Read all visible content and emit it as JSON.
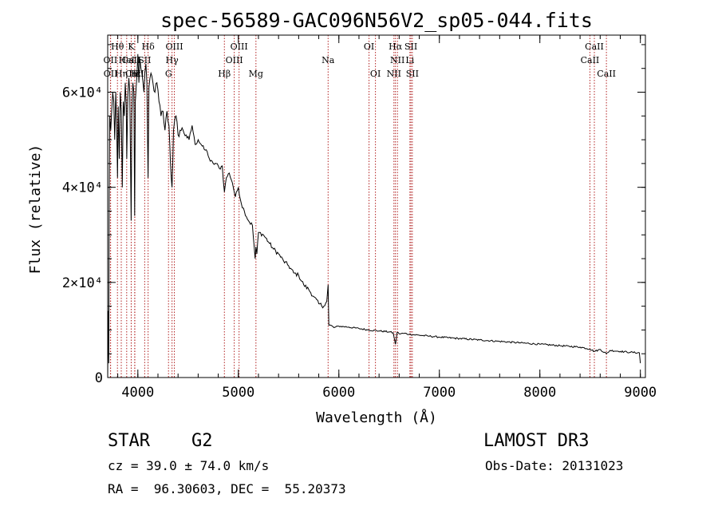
{
  "chart_data": {
    "type": "line",
    "title": "spec-56589-GAC096N56V2_sp05-044.fits",
    "xlabel": "Wavelength (Å)",
    "ylabel": "Flux (relative)",
    "xlim": [
      3700,
      9050
    ],
    "ylim": [
      0,
      72000
    ],
    "x_ticks": [
      {
        "value": 4000,
        "label": "4000"
      },
      {
        "value": 5000,
        "label": "5000"
      },
      {
        "value": 6000,
        "label": "6000"
      },
      {
        "value": 7000,
        "label": "7000"
      },
      {
        "value": 8000,
        "label": "8000"
      },
      {
        "value": 9000,
        "label": "9000"
      }
    ],
    "y_ticks": [
      {
        "value": 0,
        "label": "0"
      },
      {
        "value": 20000,
        "label": "2×10⁴"
      },
      {
        "value": 40000,
        "label": "4×10⁴"
      },
      {
        "value": 60000,
        "label": "6×10⁴"
      }
    ],
    "series": [
      {
        "name": "flux",
        "x": [
          3700,
          3705,
          3710,
          3715,
          3720,
          3730,
          3740,
          3750,
          3760,
          3770,
          3780,
          3790,
          3798,
          3805,
          3815,
          3825,
          3835,
          3845,
          3855,
          3865,
          3875,
          3885,
          3890,
          3900,
          3910,
          3920,
          3933,
          3940,
          3950,
          3960,
          3968,
          3975,
          3990,
          4000,
          4010,
          4020,
          4040,
          4060,
          4080,
          4090,
          4102,
          4110,
          4130,
          4150,
          4170,
          4190,
          4210,
          4230,
          4250,
          4270,
          4290,
          4310,
          4325,
          4340,
          4355,
          4380,
          4400,
          4420,
          4450,
          4480,
          4510,
          4540,
          4570,
          4600,
          4630,
          4660,
          4690,
          4720,
          4750,
          4780,
          4810,
          4840,
          4861,
          4880,
          4910,
          4940,
          4970,
          5000,
          5030,
          5060,
          5100,
          5140,
          5167,
          5175,
          5184,
          5200,
          5250,
          5300,
          5350,
          5400,
          5450,
          5500,
          5550,
          5600,
          5650,
          5700,
          5750,
          5800,
          5850,
          5880,
          5893,
          5900,
          5920,
          5950,
          6000,
          6100,
          6200,
          6300,
          6400,
          6500,
          6540,
          6563,
          6580,
          6600,
          6650,
          6700,
          6800,
          6900,
          7000,
          7200,
          7400,
          7600,
          7800,
          8000,
          8200,
          8400,
          8498,
          8542,
          8600,
          8662,
          8700,
          8800,
          8900,
          8990,
          9000
        ],
        "values": [
          0,
          14000,
          3000,
          38000,
          55000,
          52000,
          56000,
          60000,
          58000,
          50000,
          60000,
          53000,
          42000,
          57000,
          46000,
          60000,
          56000,
          40000,
          58000,
          55000,
          62000,
          57000,
          46000,
          59000,
          63000,
          60000,
          33000,
          55000,
          62000,
          60000,
          34000,
          58000,
          63000,
          68000,
          62000,
          67000,
          64000,
          60000,
          66000,
          62000,
          42000,
          61000,
          64000,
          62000,
          60000,
          62000,
          58000,
          55000,
          56000,
          52000,
          56000,
          53000,
          45000,
          40000,
          52000,
          55000,
          51000,
          52000,
          52000,
          51000,
          50000,
          53000,
          49000,
          50000,
          49000,
          48000,
          47500,
          45500,
          45000,
          45000,
          44000,
          44500,
          39000,
          42000,
          43000,
          41000,
          38000,
          40000,
          36500,
          35000,
          33000,
          32000,
          25000,
          27500,
          26000,
          30500,
          30000,
          28500,
          27000,
          26000,
          24500,
          23500,
          22000,
          21500,
          19500,
          18500,
          17000,
          15500,
          15000,
          16000,
          19500,
          11000,
          11000,
          10500,
          10800,
          10600,
          10300,
          10000,
          9800,
          9600,
          9400,
          7000,
          9500,
          9200,
          9300,
          9100,
          8900,
          8700,
          8500,
          8200,
          7900,
          7600,
          7300,
          7000,
          6700,
          6400,
          6000,
          5500,
          5900,
          5000,
          5700,
          5500,
          5300,
          5200,
          3000
        ]
      }
    ],
    "line_markers": [
      {
        "label": "CaII",
        "x": 3934,
        "row": 2
      },
      {
        "label": "CaII",
        "x": 3969,
        "row": 4
      },
      {
        "label": "Hε",
        "x": 3970,
        "row": 4
      },
      {
        "label": "Hδ",
        "x": 4102,
        "row": 1
      },
      {
        "label": "SII",
        "x": 4068,
        "row": 2
      },
      {
        "label": "Hγ",
        "x": 4340,
        "row": 2
      },
      {
        "label": "OIII",
        "x": 4363,
        "row": 1
      },
      {
        "label": "G",
        "x": 4305,
        "row": 3
      },
      {
        "label": "Hβ",
        "x": 4861,
        "row": 3
      },
      {
        "label": "OIII",
        "x": 4959,
        "row": 2
      },
      {
        "label": "OIII",
        "x": 5007,
        "row": 1
      },
      {
        "label": "Mg",
        "x": 5175,
        "row": 3
      },
      {
        "label": "Na",
        "x": 5893,
        "row": 2
      },
      {
        "label": "OI",
        "x": 6300,
        "row": 1
      },
      {
        "label": "OI",
        "x": 6364,
        "row": 3
      },
      {
        "label": "NII",
        "x": 6548,
        "row": 3
      },
      {
        "label": "Hα",
        "x": 6563,
        "row": 1
      },
      {
        "label": "NII",
        "x": 6583,
        "row": 2
      },
      {
        "label": "Li",
        "x": 6707,
        "row": 2
      },
      {
        "label": "SII",
        "x": 6717,
        "row": 1
      },
      {
        "label": "SII",
        "x": 6731,
        "row": 3
      },
      {
        "label": "CaII",
        "x": 8498,
        "row": 2
      },
      {
        "label": "CaII",
        "x": 8542,
        "row": 1
      },
      {
        "label": "CaII",
        "x": 8662,
        "row": 3
      },
      {
        "label": "Hθ",
        "x": 3797,
        "row": 1
      },
      {
        "label": "OII",
        "x": 3727,
        "row": 2
      },
      {
        "label": "OII",
        "x": 3729,
        "row": 3
      },
      {
        "label": "Hη",
        "x": 3835,
        "row": 3
      },
      {
        "label": "HeI",
        "x": 3889,
        "row": 2
      },
      {
        "label": "K",
        "x": 3934,
        "row": 1
      },
      {
        "label": "H",
        "x": 3969,
        "row": 3
      }
    ]
  },
  "info": {
    "object_type": "STAR",
    "subclass": "G2",
    "survey": "LAMOST DR3",
    "redshift_text": "cz = 39.0 ± 74.0 km/s",
    "obs_date_text": "Obs-Date: 20131023",
    "coords_text": "RA =  96.30603, DEC =  55.20373"
  },
  "colors": {
    "line": "#000000",
    "marker": "#b22222",
    "axis": "#000000"
  }
}
